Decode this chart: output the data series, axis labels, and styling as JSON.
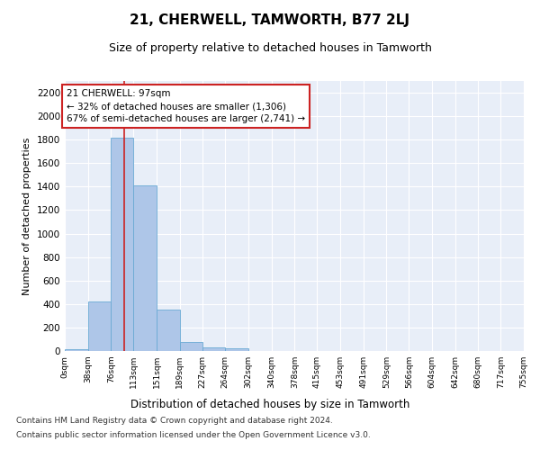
{
  "title": "21, CHERWELL, TAMWORTH, B77 2LJ",
  "subtitle": "Size of property relative to detached houses in Tamworth",
  "xlabel": "Distribution of detached houses by size in Tamworth",
  "ylabel": "Number of detached properties",
  "bar_edges": [
    0,
    38,
    76,
    113,
    151,
    189,
    227,
    264,
    302,
    340,
    378,
    415,
    453,
    491,
    529,
    566,
    604,
    642,
    680,
    717,
    755
  ],
  "bar_heights": [
    15,
    420,
    1820,
    1410,
    350,
    80,
    30,
    20,
    0,
    0,
    0,
    0,
    0,
    0,
    0,
    0,
    0,
    0,
    0,
    0
  ],
  "bar_color": "#aec6e8",
  "bar_edgecolor": "#6aaad4",
  "property_line_x": 97,
  "property_line_color": "#cc2222",
  "annotation_text": "21 CHERWELL: 97sqm\n← 32% of detached houses are smaller (1,306)\n67% of semi-detached houses are larger (2,741) →",
  "annotation_box_color": "#cc2222",
  "annotation_text_color": "black",
  "ylim": [
    0,
    2300
  ],
  "yticks": [
    0,
    200,
    400,
    600,
    800,
    1000,
    1200,
    1400,
    1600,
    1800,
    2000,
    2200
  ],
  "tick_labels": [
    "0sqm",
    "38sqm",
    "76sqm",
    "113sqm",
    "151sqm",
    "189sqm",
    "227sqm",
    "264sqm",
    "302sqm",
    "340sqm",
    "378sqm",
    "415sqm",
    "453sqm",
    "491sqm",
    "529sqm",
    "566sqm",
    "604sqm",
    "642sqm",
    "680sqm",
    "717sqm",
    "755sqm"
  ],
  "footnote1": "Contains HM Land Registry data © Crown copyright and database right 2024.",
  "footnote2": "Contains public sector information licensed under the Open Government Licence v3.0.",
  "bg_color": "#e8eef8",
  "fig_bg_color": "#ffffff",
  "title_fontsize": 11,
  "subtitle_fontsize": 9,
  "xlabel_fontsize": 8.5,
  "ylabel_fontsize": 8,
  "tick_fontsize": 6.5,
  "ytick_fontsize": 7.5,
  "annotation_fontsize": 7.5,
  "footnote_fontsize": 6.5
}
